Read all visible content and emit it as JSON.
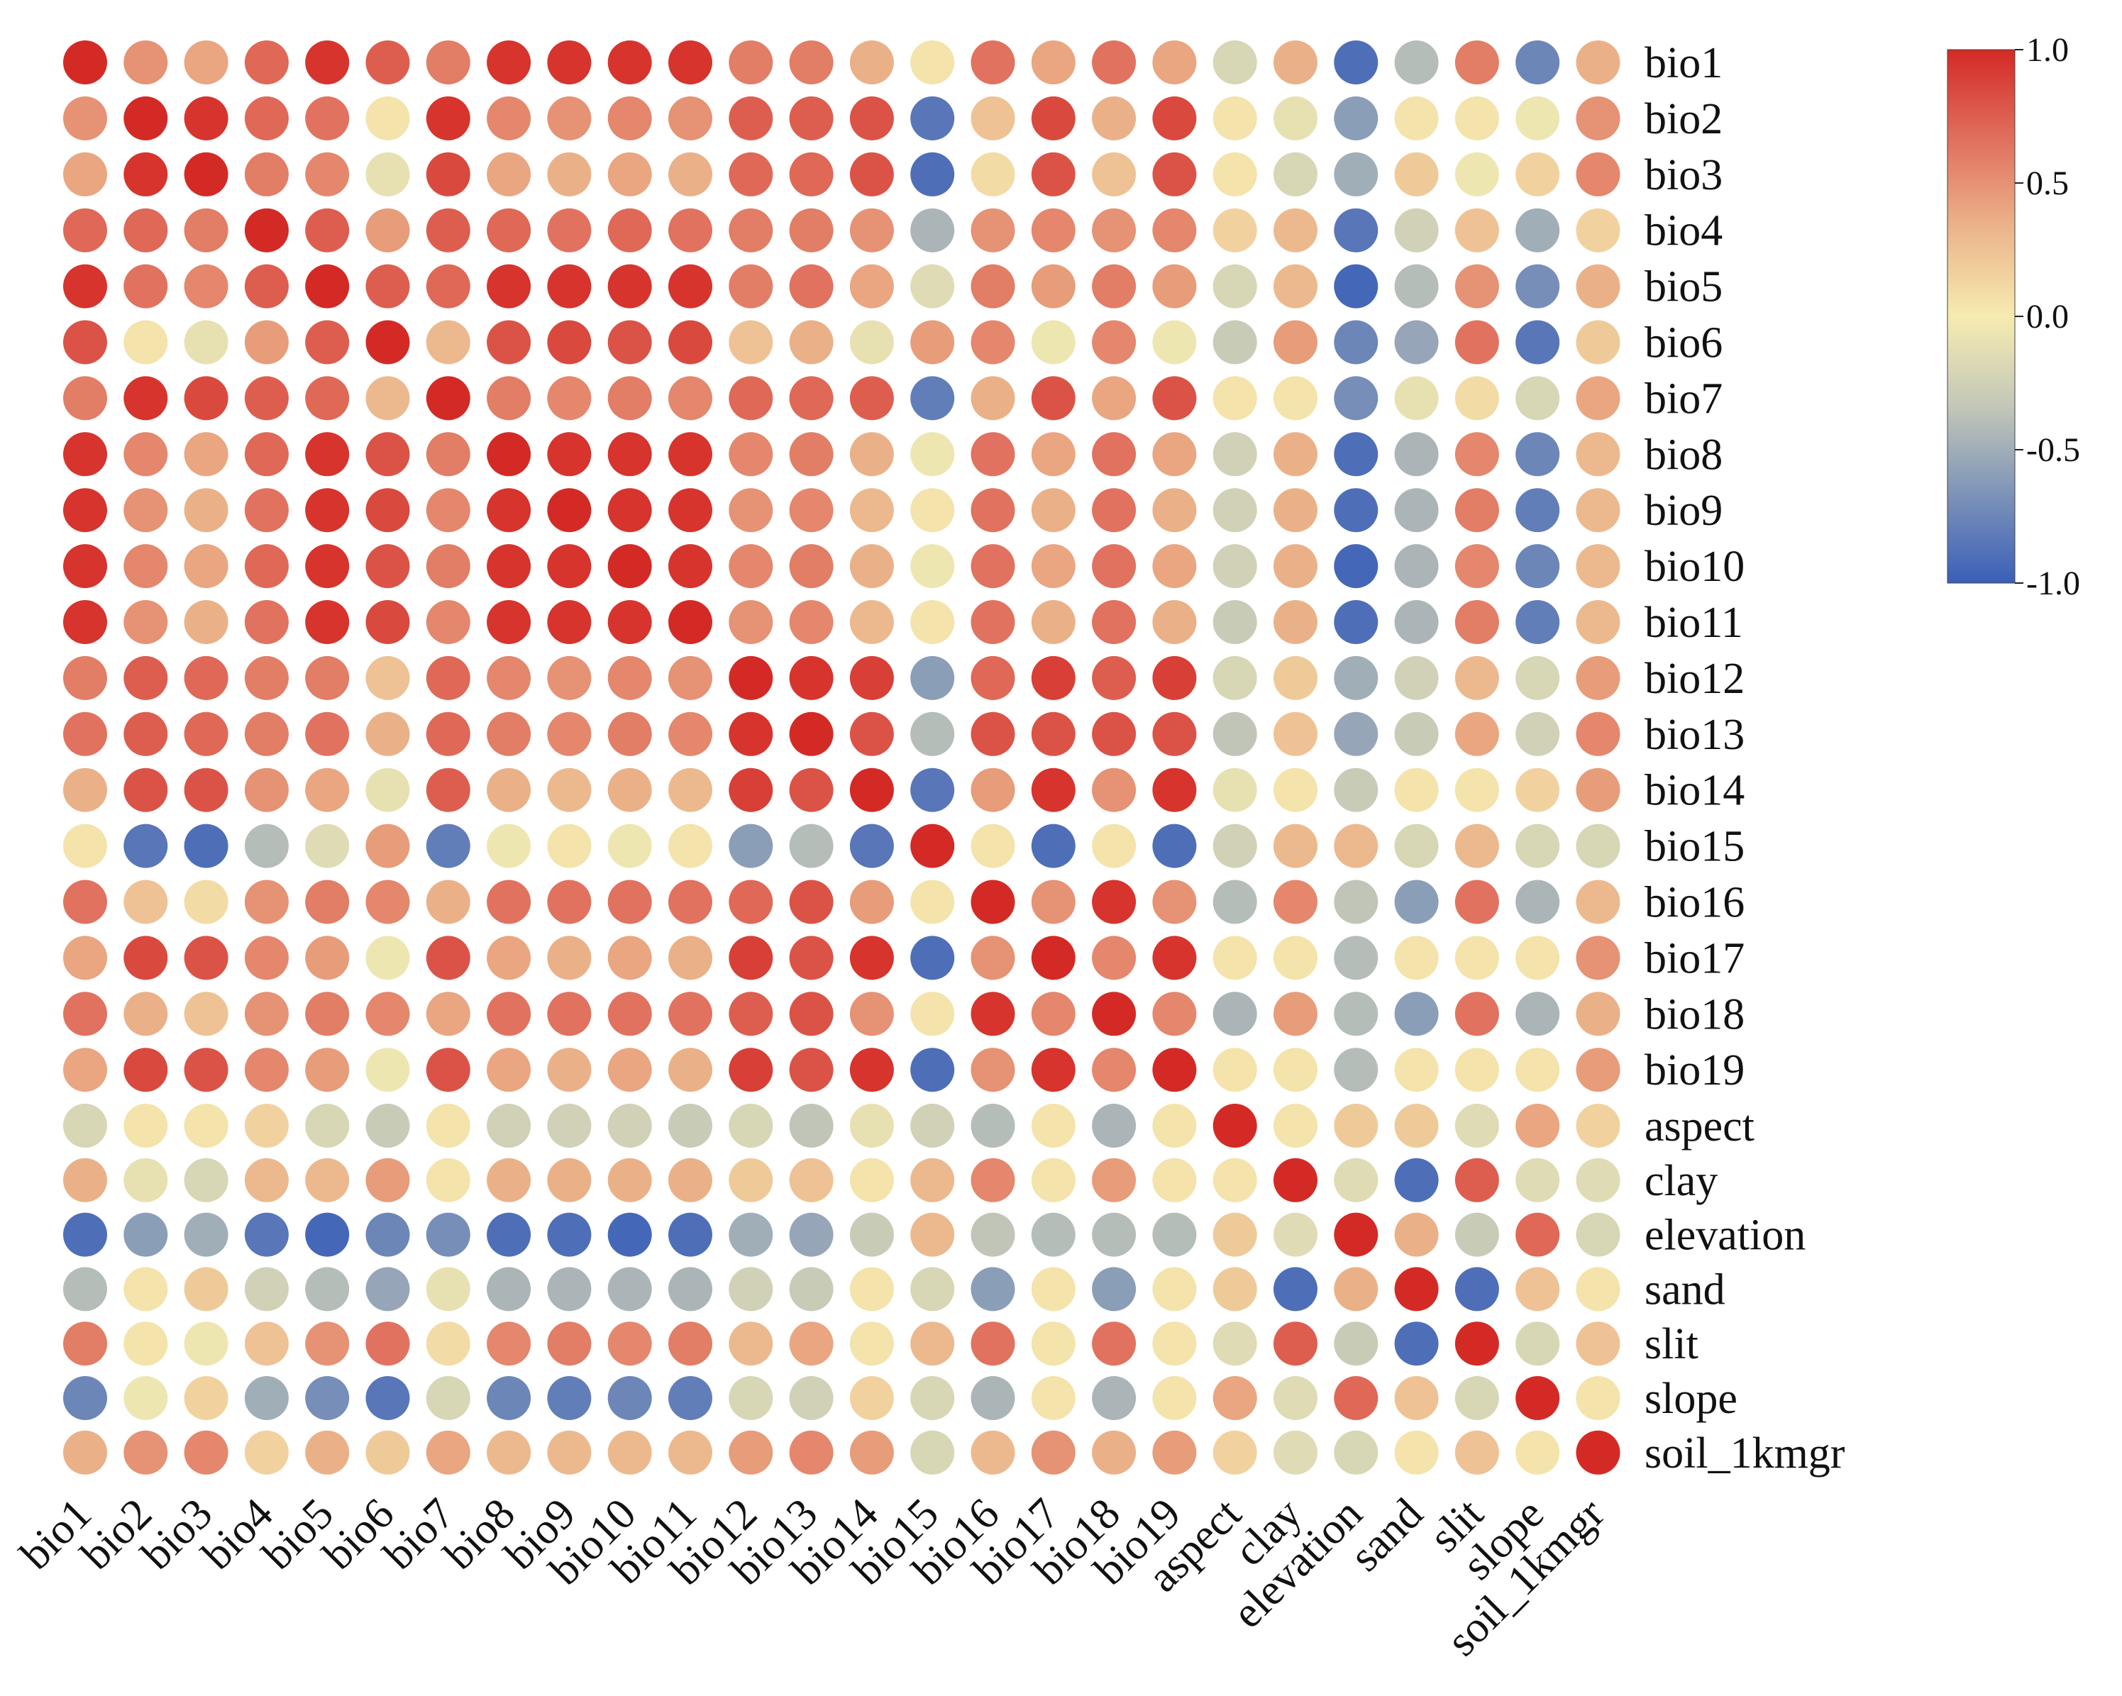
{
  "chart_data": {
    "type": "heatmap",
    "subtype": "correlation-circles",
    "title": "",
    "variables": [
      "bio1",
      "bio2",
      "bio3",
      "bio4",
      "bio5",
      "bio6",
      "bio7",
      "bio8",
      "bio9",
      "bio10",
      "bio11",
      "bio12",
      "bio13",
      "bio14",
      "bio15",
      "bio16",
      "bio17",
      "bio18",
      "bio19",
      "aspect",
      "clay",
      "elevation",
      "sand",
      "slit",
      "slope",
      "soil_1kmgr"
    ],
    "row_labels": [
      "bio1",
      "bio2",
      "bio3",
      "bio4",
      "bio5",
      "bio6",
      "bio7",
      "bio8",
      "bio9",
      "bio10",
      "bio11",
      "bio12",
      "bio13",
      "bio14",
      "bio15",
      "bio16",
      "bio17",
      "bio18",
      "bio19",
      "aspect",
      "clay",
      "elevation",
      "sand",
      "slit",
      "slope",
      "soil_1kmgr"
    ],
    "col_labels": [
      "bio1",
      "bio2",
      "bio3",
      "bio4",
      "bio5",
      "bio6",
      "bio7",
      "bio8",
      "bio9",
      "bio10",
      "bio11",
      "bio12",
      "bio13",
      "bio14",
      "bio15",
      "bio16",
      "bio17",
      "bio18",
      "bio19",
      "aspect",
      "clay",
      "elevation",
      "sand",
      "slit",
      "slope",
      "soil_1kmgr"
    ],
    "matrix": [
      [
        1.0,
        0.5,
        0.4,
        0.7,
        0.95,
        0.75,
        0.6,
        0.95,
        0.95,
        0.95,
        0.95,
        0.6,
        0.6,
        0.35,
        0.05,
        0.65,
        0.4,
        0.65,
        0.4,
        -0.2,
        0.35,
        -0.9,
        -0.4,
        0.6,
        -0.75,
        0.35
      ],
      [
        0.5,
        1.0,
        0.95,
        0.7,
        0.65,
        0.05,
        0.95,
        0.55,
        0.5,
        0.55,
        0.5,
        0.75,
        0.75,
        0.8,
        -0.85,
        0.25,
        0.85,
        0.35,
        0.85,
        0.05,
        -0.1,
        -0.6,
        0.05,
        0.05,
        -0.05,
        0.5
      ],
      [
        0.4,
        0.95,
        1.0,
        0.6,
        0.55,
        -0.1,
        0.85,
        0.4,
        0.35,
        0.4,
        0.35,
        0.7,
        0.7,
        0.8,
        -0.9,
        0.1,
        0.8,
        0.25,
        0.8,
        0.05,
        -0.2,
        -0.5,
        0.2,
        -0.05,
        0.15,
        0.55
      ],
      [
        0.7,
        0.7,
        0.6,
        1.0,
        0.75,
        0.45,
        0.75,
        0.7,
        0.65,
        0.7,
        0.65,
        0.6,
        0.6,
        0.5,
        -0.45,
        0.5,
        0.55,
        0.5,
        0.55,
        0.15,
        0.3,
        -0.85,
        -0.25,
        0.25,
        -0.5,
        0.15
      ],
      [
        0.95,
        0.65,
        0.55,
        0.75,
        1.0,
        0.75,
        0.7,
        0.95,
        0.95,
        0.95,
        0.95,
        0.6,
        0.65,
        0.4,
        -0.15,
        0.6,
        0.45,
        0.6,
        0.45,
        -0.2,
        0.3,
        -0.95,
        -0.4,
        0.5,
        -0.7,
        0.35
      ],
      [
        0.8,
        0.05,
        -0.1,
        0.45,
        0.75,
        1.0,
        0.3,
        0.8,
        0.85,
        0.8,
        0.85,
        0.25,
        0.35,
        -0.1,
        0.45,
        0.55,
        -0.05,
        0.55,
        -0.05,
        -0.3,
        0.45,
        -0.75,
        -0.55,
        0.65,
        -0.85,
        0.2
      ],
      [
        0.6,
        0.95,
        0.85,
        0.75,
        0.7,
        0.3,
        1.0,
        0.6,
        0.55,
        0.6,
        0.55,
        0.7,
        0.7,
        0.75,
        -0.8,
        0.35,
        0.8,
        0.4,
        0.8,
        0.05,
        0.05,
        -0.7,
        -0.1,
        0.1,
        -0.2,
        0.4
      ],
      [
        0.95,
        0.55,
        0.4,
        0.7,
        0.95,
        0.8,
        0.6,
        1.0,
        0.95,
        0.95,
        0.95,
        0.55,
        0.6,
        0.35,
        -0.05,
        0.65,
        0.4,
        0.65,
        0.4,
        -0.25,
        0.35,
        -0.9,
        -0.45,
        0.55,
        -0.75,
        0.3
      ],
      [
        0.95,
        0.5,
        0.35,
        0.65,
        0.95,
        0.85,
        0.55,
        0.95,
        1.0,
        0.95,
        0.95,
        0.5,
        0.55,
        0.3,
        0.05,
        0.65,
        0.35,
        0.65,
        0.35,
        -0.25,
        0.35,
        -0.9,
        -0.45,
        0.6,
        -0.8,
        0.3
      ],
      [
        0.95,
        0.55,
        0.4,
        0.7,
        0.95,
        0.8,
        0.6,
        0.95,
        0.95,
        1.0,
        0.95,
        0.55,
        0.6,
        0.35,
        -0.05,
        0.65,
        0.4,
        0.65,
        0.4,
        -0.25,
        0.35,
        -0.95,
        -0.45,
        0.55,
        -0.75,
        0.3
      ],
      [
        0.95,
        0.5,
        0.35,
        0.65,
        0.95,
        0.85,
        0.55,
        0.95,
        0.95,
        0.95,
        1.0,
        0.5,
        0.55,
        0.3,
        0.05,
        0.65,
        0.35,
        0.65,
        0.35,
        -0.3,
        0.35,
        -0.9,
        -0.45,
        0.6,
        -0.8,
        0.3
      ],
      [
        0.6,
        0.75,
        0.7,
        0.6,
        0.6,
        0.25,
        0.7,
        0.55,
        0.5,
        0.55,
        0.5,
        1.0,
        0.95,
        0.9,
        -0.6,
        0.7,
        0.9,
        0.75,
        0.9,
        -0.2,
        0.2,
        -0.5,
        -0.25,
        0.3,
        -0.2,
        0.45
      ],
      [
        0.65,
        0.75,
        0.7,
        0.6,
        0.65,
        0.35,
        0.7,
        0.6,
        0.55,
        0.6,
        0.55,
        0.95,
        1.0,
        0.8,
        -0.4,
        0.8,
        0.8,
        0.8,
        0.8,
        -0.35,
        0.25,
        -0.55,
        -0.3,
        0.4,
        -0.25,
        0.55
      ],
      [
        0.35,
        0.8,
        0.8,
        0.5,
        0.4,
        -0.1,
        0.75,
        0.35,
        0.3,
        0.35,
        0.3,
        0.9,
        0.8,
        1.0,
        -0.85,
        0.45,
        0.95,
        0.5,
        0.95,
        -0.1,
        0.05,
        -0.3,
        0.05,
        0.05,
        0.15,
        0.45
      ],
      [
        0.05,
        -0.85,
        -0.9,
        -0.4,
        -0.15,
        0.45,
        -0.8,
        -0.05,
        0.05,
        -0.05,
        0.05,
        -0.6,
        -0.4,
        -0.85,
        1.0,
        0.05,
        -0.9,
        0.05,
        -0.9,
        -0.25,
        0.3,
        0.3,
        -0.2,
        0.3,
        -0.2,
        -0.2
      ],
      [
        0.65,
        0.25,
        0.1,
        0.5,
        0.6,
        0.55,
        0.35,
        0.65,
        0.65,
        0.65,
        0.65,
        0.7,
        0.8,
        0.45,
        0.05,
        1.0,
        0.5,
        0.95,
        0.5,
        -0.4,
        0.55,
        -0.35,
        -0.6,
        0.65,
        -0.45,
        0.3
      ],
      [
        0.4,
        0.85,
        0.8,
        0.55,
        0.45,
        -0.05,
        0.8,
        0.4,
        0.35,
        0.4,
        0.35,
        0.9,
        0.8,
        0.95,
        -0.9,
        0.5,
        1.0,
        0.55,
        0.95,
        0.05,
        0.05,
        -0.4,
        0.05,
        0.05,
        0.05,
        0.5
      ],
      [
        0.65,
        0.35,
        0.25,
        0.5,
        0.6,
        0.55,
        0.4,
        0.65,
        0.65,
        0.65,
        0.65,
        0.75,
        0.8,
        0.5,
        0.05,
        0.95,
        0.55,
        1.0,
        0.55,
        -0.45,
        0.45,
        -0.4,
        -0.6,
        0.65,
        -0.45,
        0.35
      ],
      [
        0.4,
        0.85,
        0.8,
        0.55,
        0.45,
        -0.05,
        0.8,
        0.4,
        0.35,
        0.4,
        0.35,
        0.9,
        0.8,
        0.95,
        -0.9,
        0.5,
        0.95,
        0.55,
        1.0,
        0.05,
        0.05,
        -0.4,
        0.05,
        0.05,
        0.05,
        0.45
      ],
      [
        -0.2,
        0.05,
        0.05,
        0.15,
        -0.2,
        -0.3,
        0.05,
        -0.25,
        -0.25,
        -0.25,
        -0.3,
        -0.2,
        -0.35,
        -0.1,
        -0.25,
        -0.4,
        0.05,
        -0.45,
        0.05,
        1.0,
        0.05,
        0.2,
        0.2,
        -0.15,
        0.4,
        0.15
      ],
      [
        0.35,
        -0.1,
        -0.2,
        0.3,
        0.3,
        0.45,
        0.05,
        0.35,
        0.35,
        0.35,
        0.35,
        0.2,
        0.25,
        0.05,
        0.3,
        0.55,
        0.05,
        0.45,
        0.05,
        0.05,
        1.0,
        -0.15,
        -0.9,
        0.75,
        -0.15,
        -0.15
      ],
      [
        -0.9,
        -0.6,
        -0.5,
        -0.85,
        -0.95,
        -0.75,
        -0.7,
        -0.9,
        -0.9,
        -0.95,
        -0.9,
        -0.5,
        -0.55,
        -0.3,
        0.3,
        -0.35,
        -0.4,
        -0.4,
        -0.4,
        0.2,
        -0.15,
        1.0,
        0.35,
        -0.3,
        0.7,
        -0.2
      ],
      [
        -0.4,
        0.05,
        0.2,
        -0.25,
        -0.4,
        -0.55,
        -0.1,
        -0.45,
        -0.45,
        -0.45,
        -0.45,
        -0.25,
        -0.3,
        0.05,
        -0.2,
        -0.6,
        0.05,
        -0.6,
        0.05,
        0.2,
        -0.9,
        0.35,
        1.0,
        -0.9,
        0.25,
        0.05
      ],
      [
        0.6,
        0.05,
        -0.05,
        0.25,
        0.5,
        0.65,
        0.1,
        0.55,
        0.6,
        0.55,
        0.6,
        0.3,
        0.4,
        0.05,
        0.3,
        0.65,
        0.05,
        0.65,
        0.05,
        -0.15,
        0.75,
        -0.3,
        -0.9,
        1.0,
        -0.2,
        0.25
      ],
      [
        -0.75,
        -0.05,
        0.15,
        -0.5,
        -0.7,
        -0.85,
        -0.2,
        -0.75,
        -0.8,
        -0.75,
        -0.8,
        -0.2,
        -0.25,
        0.15,
        -0.2,
        -0.45,
        0.05,
        -0.45,
        0.05,
        0.4,
        -0.15,
        0.7,
        0.25,
        -0.2,
        1.0,
        0.05
      ],
      [
        0.35,
        0.5,
        0.55,
        0.15,
        0.35,
        0.2,
        0.4,
        0.3,
        0.3,
        0.3,
        0.3,
        0.45,
        0.55,
        0.45,
        -0.2,
        0.3,
        0.5,
        0.35,
        0.45,
        0.15,
        -0.15,
        -0.2,
        0.05,
        0.25,
        0.05,
        1.0
      ]
    ],
    "colorbar": {
      "min": -1.0,
      "max": 1.0,
      "ticks": [
        1.0,
        0.5,
        0.0,
        -0.5,
        -1.0
      ],
      "tick_labels": [
        "1.0",
        "0.5",
        "0.0",
        "-0.5",
        "-1.0"
      ],
      "colormap": [
        "#3a5fb8",
        "#7d93b8",
        "#c3c8b8",
        "#f6ebb0",
        "#ebb48a",
        "#e06f5d",
        "#d42a25"
      ]
    },
    "legend": "colorbar right"
  }
}
